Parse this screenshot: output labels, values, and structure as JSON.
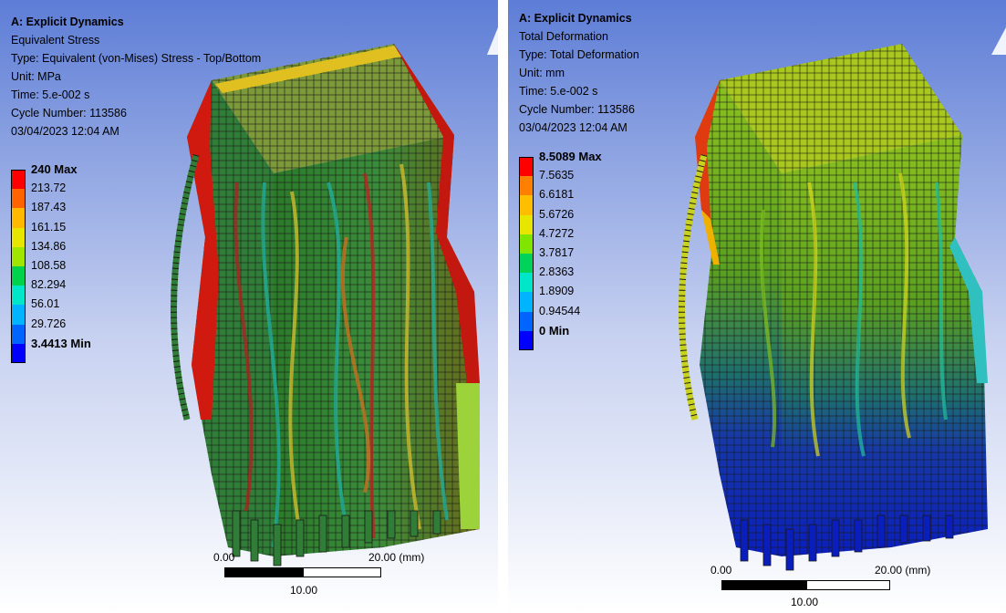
{
  "left": {
    "title": "A: Explicit Dynamics",
    "result": "Equivalent Stress",
    "type_line": "Type: Equivalent (von-Mises) Stress - Top/Bottom",
    "unit_line": "Unit: MPa",
    "time_line": "Time: 5.e-002 s",
    "cycle_line": "Cycle Number: 113586",
    "date_line": "03/04/2023 12:04 AM",
    "legend": [
      {
        "label": "240 Max",
        "color": "#ff0000",
        "bold": true
      },
      {
        "label": "213.72",
        "color": "#ff6400"
      },
      {
        "label": "187.43",
        "color": "#ffb900"
      },
      {
        "label": "161.15",
        "color": "#e6e600"
      },
      {
        "label": "134.86",
        "color": "#a0e600"
      },
      {
        "label": "108.58",
        "color": "#00d24b"
      },
      {
        "label": "82.294",
        "color": "#00e6c8"
      },
      {
        "label": "56.01",
        "color": "#00b4ff"
      },
      {
        "label": "29.726",
        "color": "#0064ff"
      },
      {
        "label": "3.4413 Min",
        "color": "#0000ff",
        "bold": true
      }
    ],
    "scale": {
      "start": "0.00",
      "mid": "10.00",
      "end": "20.00 (mm)"
    }
  },
  "right": {
    "title": "A: Explicit Dynamics",
    "result": "Total Deformation",
    "type_line": "Type: Total Deformation",
    "unit_line": "Unit: mm",
    "time_line": "Time: 5.e-002 s",
    "cycle_line": "Cycle Number: 113586",
    "date_line": "03/04/2023 12:04 AM",
    "legend": [
      {
        "label": "8.5089 Max",
        "color": "#ff0000",
        "bold": true
      },
      {
        "label": "7.5635",
        "color": "#ff8000"
      },
      {
        "label": "6.6181",
        "color": "#ffbf00"
      },
      {
        "label": "5.6726",
        "color": "#e6e600"
      },
      {
        "label": "4.7272",
        "color": "#80e600"
      },
      {
        "label": "3.7817",
        "color": "#00d25a"
      },
      {
        "label": "2.8363",
        "color": "#00e6c8"
      },
      {
        "label": "1.8909",
        "color": "#00b4ff"
      },
      {
        "label": "0.94544",
        "color": "#0064ff"
      },
      {
        "label": "0 Min",
        "color": "#0000ff",
        "bold": true
      }
    ],
    "scale": {
      "start": "0.00",
      "mid": "10.00",
      "end": "20.00 (mm)"
    }
  },
  "colors": {
    "bg_top": "#5d7dd6",
    "bg_bottom": "#ffffff"
  }
}
